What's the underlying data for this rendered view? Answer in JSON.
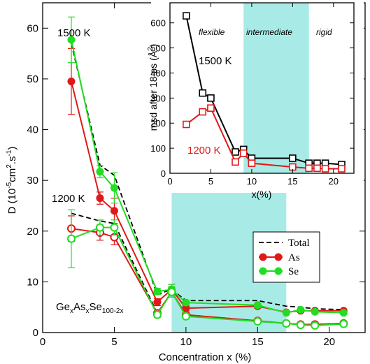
{
  "chart_data": [
    {
      "type": "line",
      "ylabel_main": "D (10",
      "ylabel_unit1": "cm",
      "ylabel_unit2": "s",
      "ylabel_sup1": "-5",
      "ylabel_sup2": "2",
      "ylabel_sup3": "-1",
      "ylabel_close": ")",
      "ylabel_dot": ".",
      "xlabel": "Concentration x (%)",
      "xlim": [
        0,
        22.5
      ],
      "ylim": [
        0,
        65
      ],
      "xticks": [
        0,
        5,
        10,
        15,
        20
      ],
      "yticks": [
        0,
        10,
        20,
        30,
        40,
        50,
        60
      ],
      "shaded_region": [
        9,
        17
      ],
      "shade_color": "#a8ebe6",
      "annotations": {
        "t1500": "1500 K",
        "t1200": "1200 K",
        "formula_ge": "Ge",
        "formula_as": "As",
        "formula_se": "Se",
        "formula_x": "x",
        "formula_x2": "x",
        "formula_sub": "100-2x"
      },
      "legend": {
        "position": "right",
        "entries": [
          "Total",
          "As",
          "Se"
        ]
      },
      "series": [
        {
          "name": "Total",
          "temperature": "1500 K",
          "style": "dashed",
          "color": "#000000",
          "x": [
            2,
            4,
            5,
            8,
            9,
            10,
            15,
            17,
            18,
            19,
            21
          ],
          "y": [
            57,
            33,
            31,
            7.5,
            8.5,
            6.3,
            6.3,
            5.2,
            5.0,
            4.7,
            4.5
          ]
        },
        {
          "name": "As",
          "temperature": "1500 K",
          "marker": "filled",
          "color": "#e01818",
          "x": [
            2,
            4,
            5,
            8,
            9,
            10,
            15,
            17,
            18,
            19,
            21
          ],
          "y": [
            49.5,
            26.5,
            24,
            6,
            8.5,
            4.8,
            5.2,
            4.0,
            4.3,
            4.3,
            4.3
          ],
          "err": [
            6.5,
            1.2,
            2.5,
            0.7,
            1.0,
            0.5,
            0.4,
            0.3,
            0.3,
            0.3,
            0.3
          ]
        },
        {
          "name": "Se",
          "temperature": "1500 K",
          "marker": "filled",
          "color": "#22dd22",
          "x": [
            2,
            4,
            5,
            8,
            9,
            10,
            15,
            17,
            18,
            19,
            21
          ],
          "y": [
            57.7,
            31.7,
            28.5,
            8.1,
            8.5,
            5.9,
            5.4,
            3.9,
            4.5,
            4.1,
            3.9
          ],
          "err": [
            4.5,
            1.2,
            3.0,
            0.6,
            1.0,
            0.5,
            0.4,
            0.3,
            0.3,
            0.3,
            0.3
          ]
        },
        {
          "name": "Total",
          "temperature": "1200 K",
          "style": "dashed",
          "color": "#000000",
          "x": [
            2,
            4,
            5,
            8,
            9,
            10,
            15,
            17,
            18,
            19,
            21
          ],
          "y": [
            23.5,
            22,
            21.5,
            3.8,
            8.0,
            3.5,
            2.3,
            1.8,
            1.6,
            1.6,
            1.8
          ]
        },
        {
          "name": "As",
          "temperature": "1200 K",
          "marker": "open",
          "color": "#e01818",
          "x": [
            2,
            4,
            5,
            8,
            9,
            10,
            15,
            17,
            18,
            19,
            21
          ],
          "y": [
            20.5,
            19.7,
            18.8,
            3.8,
            8.0,
            3.5,
            2.3,
            1.8,
            1.6,
            1.6,
            1.8
          ],
          "err": [
            2.5,
            1.5,
            1.5,
            0.5,
            1.0,
            0.5,
            0.3,
            0.3,
            0.3,
            0.3,
            0.3
          ]
        },
        {
          "name": "Se",
          "temperature": "1200 K",
          "marker": "open",
          "color": "#22dd22",
          "x": [
            2,
            4,
            5,
            8,
            9,
            10,
            15,
            17,
            18,
            19,
            21
          ],
          "y": [
            18.5,
            20.7,
            20.7,
            3.5,
            8.0,
            3.2,
            2.2,
            1.8,
            1.5,
            1.4,
            1.7
          ],
          "err": [
            5.7,
            1.5,
            1.5,
            0.5,
            1.0,
            0.5,
            0.3,
            0.3,
            0.3,
            0.3,
            0.3
          ]
        }
      ]
    },
    {
      "type": "line",
      "xlabel": "x(%)",
      "ylabel_main": "msd after 18 ps (",
      "ylabel_unit": "Å",
      "ylabel_sup": "2",
      "ylabel_close": ")",
      "xlim": [
        0,
        22.5
      ],
      "ylim": [
        0,
        680
      ],
      "xticks": [
        0,
        5,
        10,
        15,
        20
      ],
      "yticks": [
        0,
        100,
        200,
        300,
        400,
        500,
        600
      ],
      "shaded_region": [
        9,
        17
      ],
      "regions": [
        "flexible",
        "intermediate",
        "rigid"
      ],
      "annotations": {
        "t1500": "1500 K",
        "t1200": "1200 K"
      },
      "series": [
        {
          "temperature": "1500 K",
          "marker": "open-square",
          "color": "#000000",
          "x": [
            2,
            4,
            5,
            8,
            9,
            10,
            15,
            17,
            18,
            19,
            21
          ],
          "y": [
            628,
            320,
            300,
            85,
            95,
            60,
            60,
            40,
            40,
            40,
            35
          ]
        },
        {
          "temperature": "1200 K",
          "marker": "open-square",
          "color": "#e01818",
          "x": [
            2,
            4,
            5,
            8,
            9,
            10,
            15,
            17,
            18,
            19,
            21
          ],
          "y": [
            195,
            245,
            260,
            45,
            80,
            40,
            25,
            20,
            20,
            18,
            18
          ]
        }
      ]
    }
  ]
}
